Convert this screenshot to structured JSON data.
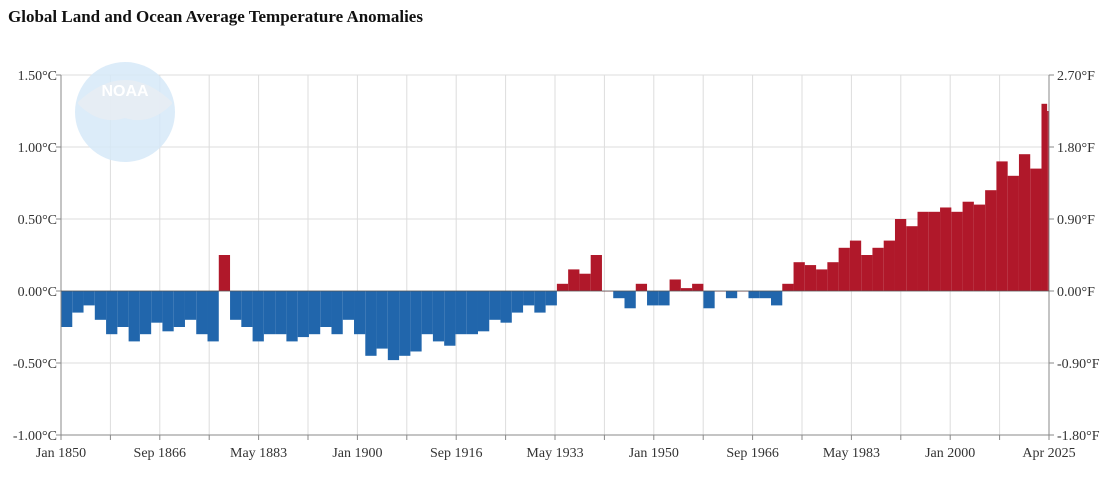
{
  "title": "Global Land and Ocean Average Temperature Anomalies",
  "logo_text": "NOAA",
  "chart_data": {
    "type": "bar",
    "title": "Global Land and Ocean Average Temperature Anomalies",
    "xlabel": "",
    "ylabel": "",
    "x_range": [
      "Jan 1850",
      "Apr 2025"
    ],
    "ylim": [
      -1.0,
      1.5
    ],
    "y_ticks_left": [
      "1.50°C",
      "1.00°C",
      "0.50°C",
      "0.00°C",
      "-0.50°C",
      "-1.00°C"
    ],
    "y_ticks_right": [
      "2.70°F",
      "1.80°F",
      "0.90°F",
      "0.00°F",
      "-0.90°F",
      "-1.80°F"
    ],
    "x_ticks": [
      "Jan 1850",
      "Sep 1866",
      "May 1883",
      "Jan 1900",
      "Sep 1916",
      "May 1933",
      "Jan 1950",
      "Sep 1966",
      "May 1983",
      "Jan 2000",
      "Apr 2025"
    ],
    "grid": true,
    "positive_color": "#b0182a",
    "negative_color": "#2166ac",
    "years": [
      1850,
      1852,
      1854,
      1856,
      1858,
      1860,
      1862,
      1864,
      1866,
      1868,
      1870,
      1872,
      1874,
      1876,
      1878,
      1880,
      1882,
      1884,
      1886,
      1888,
      1890,
      1892,
      1894,
      1896,
      1898,
      1900,
      1902,
      1904,
      1906,
      1908,
      1910,
      1912,
      1914,
      1916,
      1918,
      1920,
      1922,
      1924,
      1926,
      1928,
      1930,
      1932,
      1934,
      1936,
      1938,
      1940,
      1942,
      1944,
      1946,
      1948,
      1950,
      1952,
      1954,
      1956,
      1958,
      1960,
      1962,
      1964,
      1966,
      1968,
      1970,
      1972,
      1974,
      1976,
      1978,
      1980,
      1982,
      1984,
      1986,
      1988,
      1990,
      1992,
      1994,
      1996,
      1998,
      2000,
      2002,
      2004,
      2006,
      2008,
      2010,
      2012,
      2014,
      2016,
      2018,
      2020,
      2022,
      2024,
      2025
    ],
    "values": [
      -0.25,
      -0.15,
      -0.1,
      -0.2,
      -0.3,
      -0.25,
      -0.35,
      -0.3,
      -0.22,
      -0.28,
      -0.25,
      -0.2,
      -0.3,
      -0.35,
      0.25,
      -0.2,
      -0.25,
      -0.35,
      -0.3,
      -0.3,
      -0.35,
      -0.32,
      -0.3,
      -0.25,
      -0.3,
      -0.2,
      -0.3,
      -0.45,
      -0.4,
      -0.48,
      -0.45,
      -0.42,
      -0.3,
      -0.35,
      -0.38,
      -0.3,
      -0.3,
      -0.28,
      -0.2,
      -0.22,
      -0.15,
      -0.1,
      -0.15,
      -0.1,
      0.05,
      0.15,
      0.12,
      0.25,
      0.0,
      -0.05,
      -0.12,
      0.05,
      -0.1,
      -0.1,
      0.08,
      0.02,
      0.05,
      -0.12,
      0.0,
      -0.05,
      0.0,
      -0.05,
      -0.05,
      -0.1,
      0.05,
      0.2,
      0.18,
      0.15,
      0.2,
      0.3,
      0.35,
      0.25,
      0.3,
      0.35,
      0.5,
      0.45,
      0.55,
      0.55,
      0.58,
      0.55,
      0.62,
      0.6,
      0.7,
      0.9,
      0.8,
      0.95,
      0.85,
      1.3,
      1.25
    ]
  }
}
